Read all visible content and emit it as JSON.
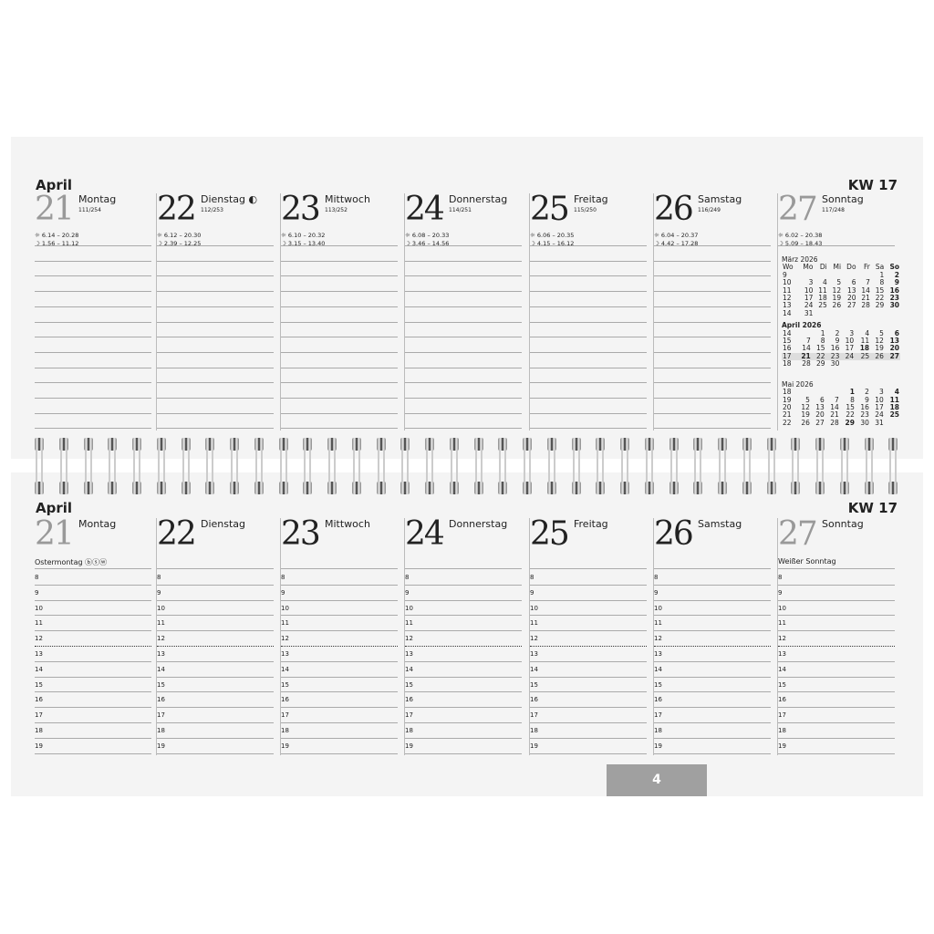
{
  "month": "April",
  "week": "KW 17",
  "days": [
    {
      "num": "21",
      "name": "Montag",
      "count": "111/254",
      "sun": "6.14 – 20.28",
      "moon": "1.56 – 11.12",
      "holiday": "Ostermontag ⓑⓢⓦ",
      "gray": true
    },
    {
      "num": "22",
      "name": "Dienstag ◐",
      "count": "112/253",
      "sun": "6.12 – 20.30",
      "moon": "2.39 – 12.25",
      "holiday": ""
    },
    {
      "num": "23",
      "name": "Mittwoch",
      "count": "113/252",
      "sun": "6.10 – 20.32",
      "moon": "3.15 – 13.40",
      "holiday": ""
    },
    {
      "num": "24",
      "name": "Donnerstag",
      "count": "114/251",
      "sun": "6.08 – 20.33",
      "moon": "3.46 – 14.56",
      "holiday": ""
    },
    {
      "num": "25",
      "name": "Freitag",
      "count": "115/250",
      "sun": "6.06 – 20.35",
      "moon": "4.15 – 16.12",
      "holiday": ""
    },
    {
      "num": "26",
      "name": "Samstag",
      "count": "116/249",
      "sun": "6.04 – 20.37",
      "moon": "4.42 – 17.28",
      "holiday": ""
    },
    {
      "num": "27",
      "name": "Sonntag",
      "count": "117/248",
      "sun": "6.02 – 20.38",
      "moon": "5.09 – 18.43",
      "holiday": "Weißer Sonntag",
      "gray": true
    }
  ],
  "bottom_day_names": [
    "Montag",
    "Dienstag",
    "Mittwoch",
    "Donnerstag",
    "Freitag",
    "Samstag",
    "Sonntag"
  ],
  "hours": [
    "8",
    "9",
    "10",
    "11",
    "12",
    "13",
    "14",
    "15",
    "16",
    "17",
    "18",
    "19"
  ],
  "icons": {
    "sun": "sun-icon ☼",
    "moon": "moon-icon ☽"
  },
  "mini_calendar": {
    "header": [
      "Wo",
      "Mo",
      "Di",
      "Mi",
      "Do",
      "Fr",
      "Sa",
      "So"
    ],
    "months": [
      {
        "title": "März 2026",
        "rows": [
          [
            "9",
            "",
            "",
            "",
            "",
            "",
            "1",
            "2"
          ],
          [
            "10",
            "3",
            "4",
            "5",
            "6",
            "7",
            "8",
            "9"
          ],
          [
            "11",
            "10",
            "11",
            "12",
            "13",
            "14",
            "15",
            "16"
          ],
          [
            "12",
            "17",
            "18",
            "19",
            "20",
            "21",
            "22",
            "23"
          ],
          [
            "13",
            "24",
            "25",
            "26",
            "27",
            "28",
            "29",
            "30"
          ],
          [
            "14",
            "31",
            "",
            "",
            "",
            "",
            "",
            ""
          ]
        ]
      },
      {
        "title": "April 2026",
        "rows": [
          [
            "14",
            "",
            "1",
            "2",
            "3",
            "4",
            "5",
            "6"
          ],
          [
            "15",
            "7",
            "8",
            "9",
            "10",
            "11",
            "12",
            "13"
          ],
          [
            "16",
            "14",
            "15",
            "16",
            "17",
            "18",
            "19",
            "20"
          ],
          [
            "17",
            "21",
            "22",
            "23",
            "24",
            "25",
            "26",
            "27"
          ],
          [
            "18",
            "28",
            "29",
            "30",
            "",
            "",
            "",
            ""
          ]
        ]
      },
      {
        "title": "Mai 2026",
        "rows": [
          [
            "18",
            "",
            "",
            "",
            "1",
            "2",
            "3",
            "4"
          ],
          [
            "19",
            "5",
            "6",
            "7",
            "8",
            "9",
            "10",
            "11"
          ],
          [
            "20",
            "12",
            "13",
            "14",
            "15",
            "16",
            "17",
            "18"
          ],
          [
            "21",
            "19",
            "20",
            "21",
            "22",
            "23",
            "24",
            "25"
          ],
          [
            "22",
            "26",
            "27",
            "28",
            "29",
            "30",
            "31",
            ""
          ]
        ]
      }
    ]
  },
  "page_number": "4"
}
